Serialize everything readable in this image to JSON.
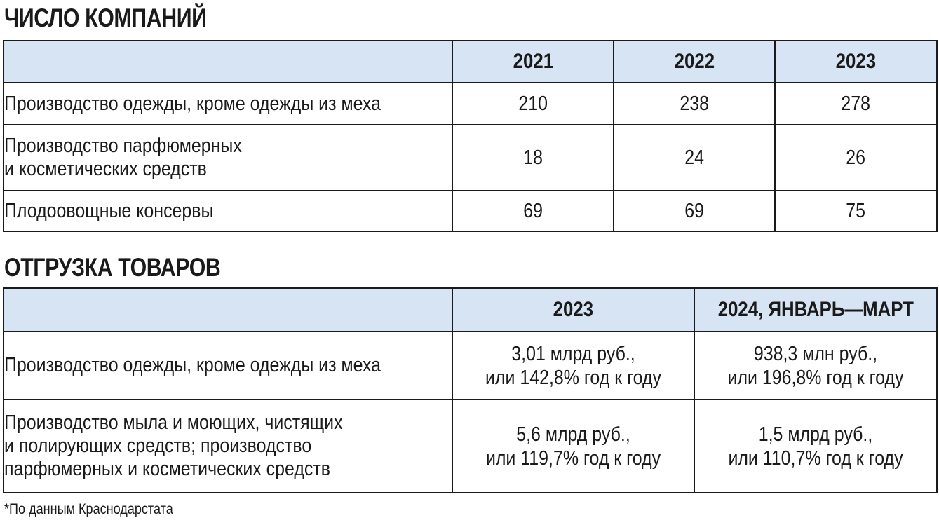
{
  "companies": {
    "title": "ЧИСЛО КОМПАНИЙ",
    "columns": [
      "2021",
      "2022",
      "2023"
    ],
    "rows": [
      {
        "label_lines": [
          "Производство одежды, кроме одежды из меха"
        ],
        "values": [
          "210",
          "238",
          "278"
        ]
      },
      {
        "label_lines": [
          "Производство парфюмерных",
          "и косметических средств"
        ],
        "values": [
          "18",
          "24",
          "26"
        ]
      },
      {
        "label_lines": [
          "Плодоовощные консервы"
        ],
        "values": [
          "69",
          "69",
          "75"
        ]
      }
    ]
  },
  "shipments": {
    "title": "ОТГРУЗКА ТОВАРОВ",
    "columns": [
      "2023",
      "2024, ЯНВАРЬ—МАРТ"
    ],
    "rows": [
      {
        "label_lines": [
          "Производство одежды, кроме одежды из меха"
        ],
        "values": [
          [
            "3,01 млрд руб.,",
            "или 142,8% год к году"
          ],
          [
            "938,3 млн руб.,",
            "или 196,8% год к году"
          ]
        ]
      },
      {
        "label_lines": [
          "Производство мыла и моющих, чистящих",
          "и полирующих средств; производство",
          "парфюмерных и косметических средств"
        ],
        "values": [
          [
            "5,6 млрд руб.,",
            "или 119,7% год к году"
          ],
          [
            "1,5 млрд руб.,",
            "или 110,7% год к году"
          ]
        ]
      }
    ]
  },
  "footnote": "*По данным Краснодарстата",
  "colors": {
    "header_bg": "#d7e4f4",
    "border": "#1a1a1a"
  }
}
